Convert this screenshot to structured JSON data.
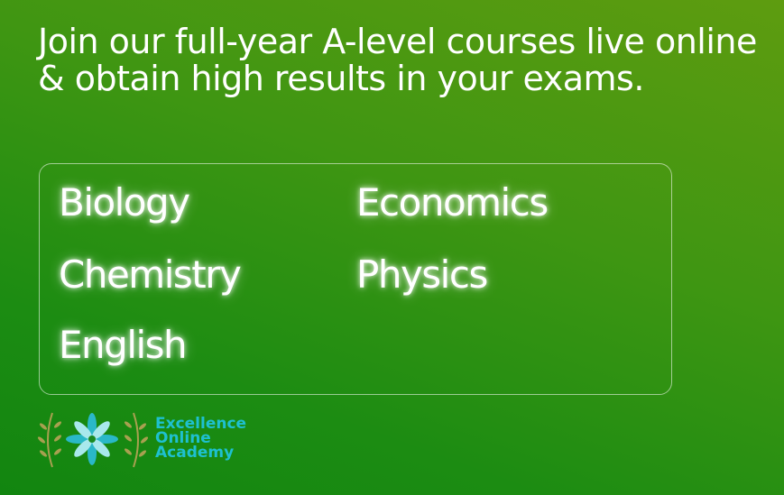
{
  "headline": "Join our full-year A-level courses live online & obtain high results in your exams.",
  "subjects": [
    "Biology",
    "Economics",
    "Chemistry",
    "Physics",
    "English"
  ],
  "logo": {
    "line1": "Excellence",
    "line2": "Online",
    "line3": "Academy",
    "icon": "flower-with-laurels"
  },
  "colors": {
    "accent": "#1ec0d0",
    "background": "#3f9612"
  }
}
